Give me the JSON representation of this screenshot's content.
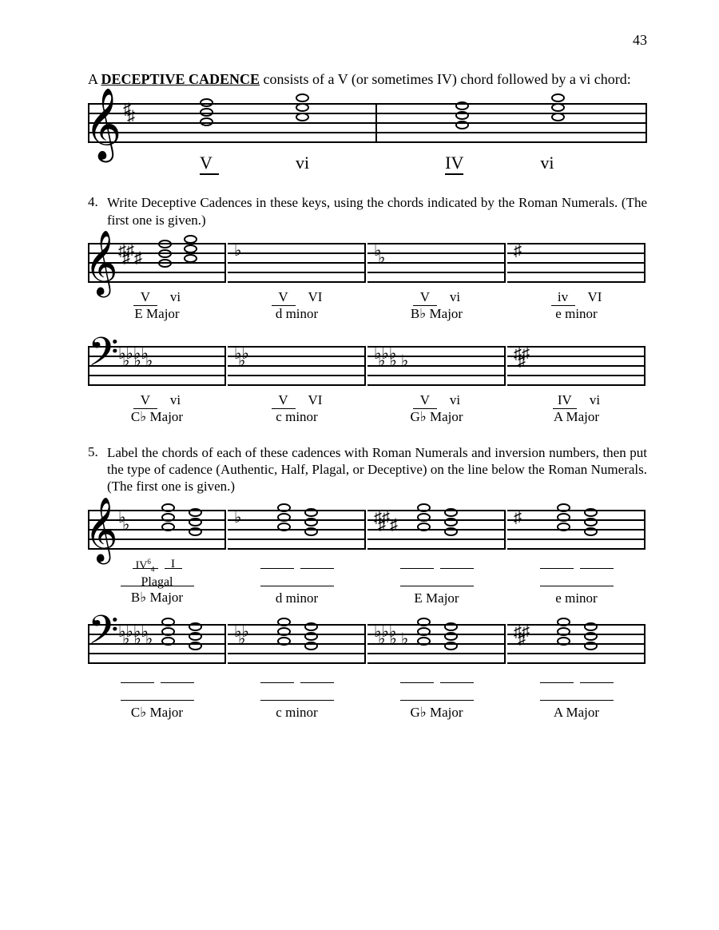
{
  "page_number": "43",
  "intro": {
    "prefix": "A ",
    "term": "DECEPTIVE CADENCE",
    "rest": " consists of a V (or sometimes IV) chord followed by a vi chord:"
  },
  "example": {
    "roman_numerals": [
      "V",
      "vi",
      "IV",
      "vi"
    ]
  },
  "ex4": {
    "number": "4.",
    "text": "Write Deceptive Cadences in these keys, using the chords indicated by the Roman Numerals.  (The first one is given.)",
    "row1": [
      {
        "rn": [
          "V",
          "vi"
        ],
        "key": "E Major",
        "clef": "treble",
        "sig": "♯♯♯♯",
        "has_example": true
      },
      {
        "rn": [
          "V",
          "VI"
        ],
        "key": "d minor",
        "clef": "treble",
        "sig": "♭"
      },
      {
        "rn": [
          "V",
          "vi"
        ],
        "key": "B♭ Major",
        "clef": "treble",
        "sig": "♭♭"
      },
      {
        "rn": [
          "iv",
          "VI"
        ],
        "key": "e minor",
        "clef": "treble",
        "sig": "♯"
      }
    ],
    "row2": [
      {
        "rn": [
          "V",
          "vi"
        ],
        "key": "C♭ Major",
        "clef": "bass",
        "sig": "♭♭♭♭♭♭♭"
      },
      {
        "rn": [
          "V",
          "VI"
        ],
        "key": "c minor",
        "clef": "bass",
        "sig": "♭♭♭"
      },
      {
        "rn": [
          "V",
          "vi"
        ],
        "key": "G♭ Major",
        "clef": "bass",
        "sig": "♭♭♭♭♭♭"
      },
      {
        "rn": [
          "IV",
          "vi"
        ],
        "key": "A Major",
        "clef": "bass",
        "sig": "♯♯♯"
      }
    ]
  },
  "ex5": {
    "number": "5.",
    "text": "Label the chords of each of these cadences with Roman Numerals and inversion numbers, then put the type of cadence (Authentic, Half, Plagal, or Deceptive) on the line below the Roman Numerals.  (The first one is given.)",
    "row1": [
      {
        "key": "B♭ Major",
        "clef": "treble",
        "sig": "♭♭",
        "answer_rn": "IV⁶₄  I",
        "answer_type": "Plagal"
      },
      {
        "key": "d minor",
        "clef": "treble",
        "sig": "♭"
      },
      {
        "key": "E Major",
        "clef": "treble",
        "sig": "♯♯♯♯"
      },
      {
        "key": "e minor",
        "clef": "treble",
        "sig": "♯"
      }
    ],
    "row2": [
      {
        "key": "C♭ Major",
        "clef": "bass",
        "sig": "♭♭♭♭♭♭♭"
      },
      {
        "key": "c minor",
        "clef": "bass",
        "sig": "♭♭♭"
      },
      {
        "key": "G♭ Major",
        "clef": "bass",
        "sig": "♭♭♭♭♭♭"
      },
      {
        "key": "A Major",
        "clef": "bass",
        "sig": "♯♯♯"
      }
    ]
  },
  "style": {
    "text_color": "#000000",
    "background": "#ffffff",
    "font_family": "Times New Roman",
    "body_fontsize_pt": 13
  }
}
